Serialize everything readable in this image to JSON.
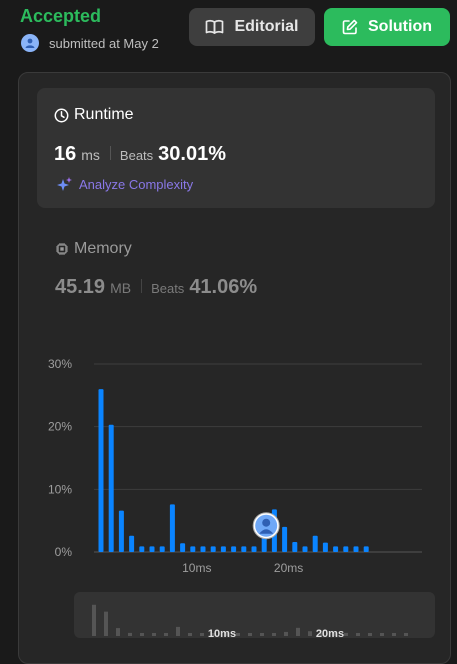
{
  "header": {
    "status": "Accepted",
    "submitted_text": "submitted at May 2",
    "editorial_label": "Editorial",
    "solution_label": "Solution"
  },
  "runtime": {
    "title": "Runtime",
    "value": "16",
    "unit": "ms",
    "beats_label": "Beats",
    "beats_pct": "30.01%",
    "analyze_label": "Analyze Complexity"
  },
  "memory": {
    "title": "Memory",
    "value": "45.19",
    "unit": "MB",
    "beats_label": "Beats",
    "beats_pct": "41.06%"
  },
  "colors": {
    "accepted": "#2cbb5d",
    "bar": "#0a84ff",
    "analyze": "#8a78e8"
  },
  "chart_data": {
    "type": "bar",
    "y_ticks": [
      "30%",
      "20%",
      "10%",
      "0%"
    ],
    "x_tick_labels": [
      {
        "label": "10ms",
        "bar_index": 9
      },
      {
        "label": "20ms",
        "bar_index": 18
      }
    ],
    "ylim": [
      0,
      30
    ],
    "values": [
      26,
      20.3,
      6.6,
      2.6,
      0.9,
      0.9,
      0.9,
      7.6,
      1.4,
      0.9,
      0.9,
      0.9,
      0.9,
      0.9,
      0.9,
      0.9,
      3.4,
      6.8,
      4,
      1.6,
      0.9,
      2.6,
      1.5,
      0.9,
      0.9,
      0.9,
      0.9
    ],
    "highlight_index": 16,
    "grid": true
  }
}
